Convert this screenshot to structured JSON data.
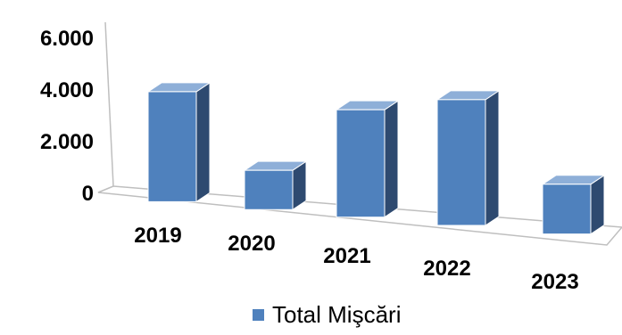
{
  "chart_data": {
    "type": "bar",
    "title": "",
    "xlabel": "",
    "ylabel": "",
    "categories": [
      "2019",
      "2020",
      "2021",
      "2022",
      "2023"
    ],
    "series": [
      {
        "name": "Total Mişcări",
        "values": [
          4200,
          1500,
          4100,
          4800,
          1900
        ],
        "color": "#4F81BD"
      }
    ],
    "ylim": [
      0,
      6000
    ],
    "yticks": [
      0,
      2000,
      4000,
      6000
    ],
    "ytick_labels": [
      "0",
      "2.000",
      "4.000",
      "6.000"
    ],
    "style": "3d-column",
    "grid": false,
    "legend_position": "bottom"
  }
}
